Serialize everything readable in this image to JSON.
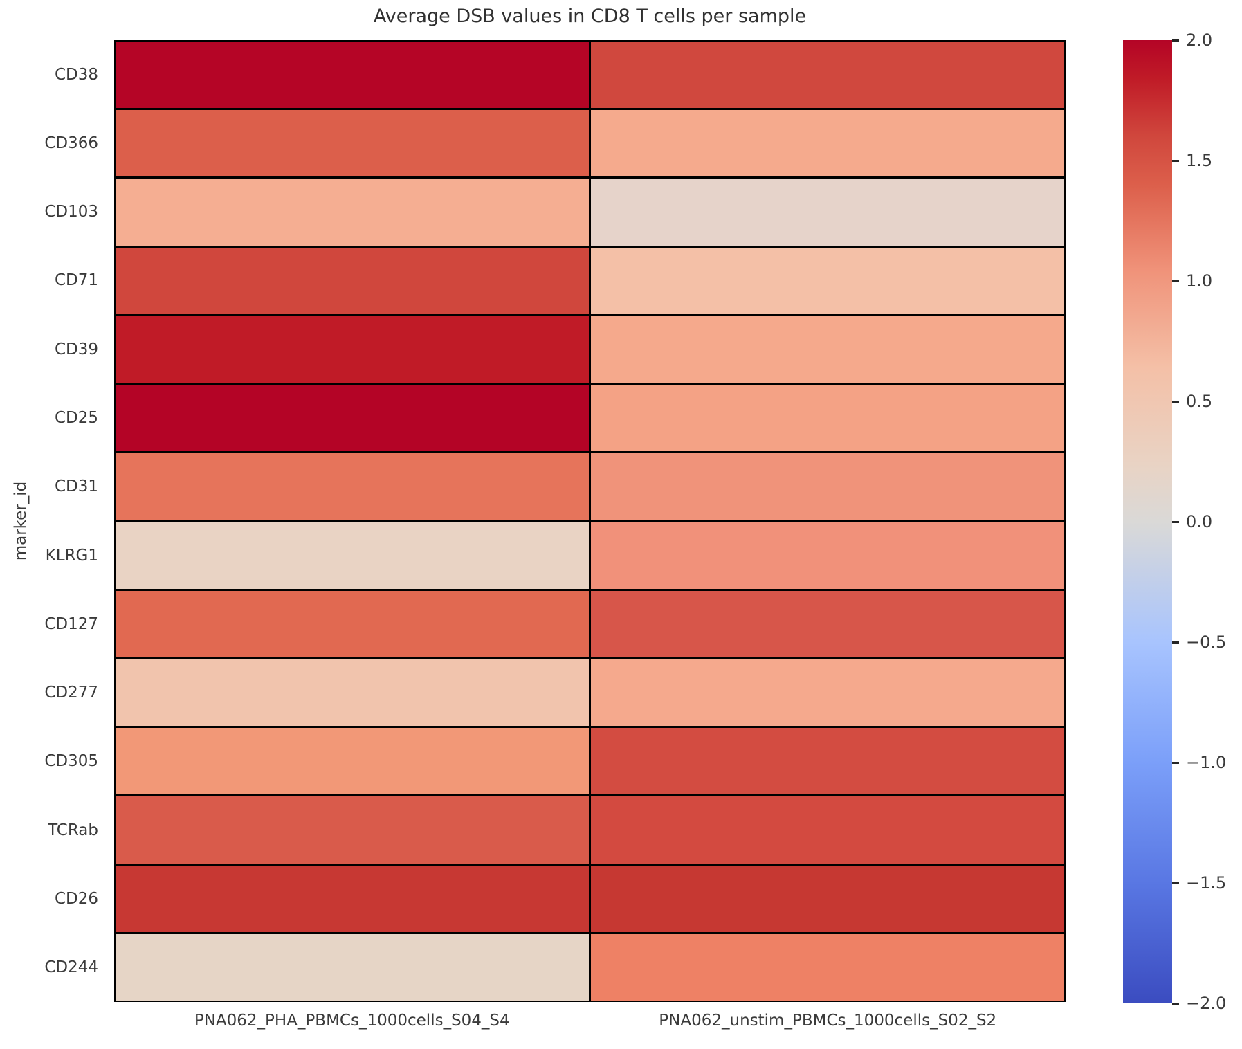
{
  "title": "Average DSB values in CD8 T cells per sample",
  "yaxis_title": "marker_id",
  "chart_data": {
    "type": "heatmap",
    "title": "Average DSB values in CD8 T cells per sample",
    "ylabel": "marker_id",
    "xlabel": "",
    "rows": [
      "CD38",
      "CD366",
      "CD103",
      "CD71",
      "CD39",
      "CD25",
      "CD31",
      "KLRG1",
      "CD127",
      "CD277",
      "CD305",
      "TCRab",
      "CD26",
      "CD244"
    ],
    "columns": [
      "PNA062_PHA_PBMCs_1000cells_S04_S4",
      "PNA062_unstim_PBMCs_1000cells_S02_S2"
    ],
    "values": [
      [
        2.0,
        1.6
      ],
      [
        1.4,
        0.9
      ],
      [
        0.85,
        0.2
      ],
      [
        1.6,
        0.65
      ],
      [
        1.85,
        0.9
      ],
      [
        2.0,
        0.95
      ],
      [
        1.25,
        1.05
      ],
      [
        0.25,
        1.05
      ],
      [
        1.35,
        1.5
      ],
      [
        0.6,
        0.9
      ],
      [
        1.0,
        1.55
      ],
      [
        1.4,
        1.55
      ],
      [
        1.7,
        1.7
      ],
      [
        0.25,
        1.15
      ]
    ],
    "cell_colors": [
      [
        "#b50526",
        "#d0483e"
      ],
      [
        "#dc5f4b",
        "#f5aa8d"
      ],
      [
        "#f5ae92",
        "#e6d3ca"
      ],
      [
        "#d0473d",
        "#f4c0a7"
      ],
      [
        "#c01b27",
        "#f5a98c"
      ],
      [
        "#b40426",
        "#f4a285"
      ],
      [
        "#e6745b",
        "#f0937a"
      ],
      [
        "#e9d3c4",
        "#f1917a"
      ],
      [
        "#e16951",
        "#d7564a"
      ],
      [
        "#f1c4ad",
        "#f5a98d"
      ],
      [
        "#f29877",
        "#d34c41"
      ],
      [
        "#d95b4b",
        "#d34a40"
      ],
      [
        "#c73833",
        "#c63832"
      ],
      [
        "#e6d5c6",
        "#ee8165"
      ]
    ],
    "colormap": "coolwarm",
    "vmin": -2.0,
    "vmax": 2.0,
    "grid_line_color": "#000000",
    "legend_position": "right-colorbar",
    "colorbar_ticks": [
      "2.0",
      "1.5",
      "1.0",
      "0.5",
      "0.0",
      "−0.5",
      "−1.0",
      "−1.5",
      "−2.0"
    ],
    "colorbar_gradient_stops": [
      {
        "pct": 0,
        "color": "#b40426"
      },
      {
        "pct": 4,
        "color": "#c01b27"
      },
      {
        "pct": 10,
        "color": "#d0473d"
      },
      {
        "pct": 15,
        "color": "#dc5f4b"
      },
      {
        "pct": 24,
        "color": "#f0937a"
      },
      {
        "pct": 34,
        "color": "#f4c0a7"
      },
      {
        "pct": 44,
        "color": "#e9d3c4"
      },
      {
        "pct": 50,
        "color": "#dad9d7"
      },
      {
        "pct": 62.5,
        "color": "#a8c4fe"
      },
      {
        "pct": 75,
        "color": "#7b9ff9"
      },
      {
        "pct": 87.5,
        "color": "#5977e3"
      },
      {
        "pct": 100,
        "color": "#3b4cc0"
      }
    ]
  }
}
